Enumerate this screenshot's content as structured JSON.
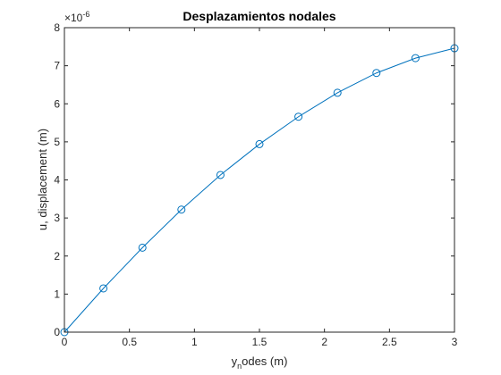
{
  "chart_data": {
    "type": "line",
    "title": "Desplazamientos nodales",
    "xlabel": {
      "main": "y",
      "subscript": "n",
      "rest": "odes (m)"
    },
    "ylabel": "u, displacement (m)",
    "exponent": {
      "base": "×10",
      "power": "-6"
    },
    "xlim": [
      0,
      3
    ],
    "ylim": [
      0,
      8
    ],
    "xticks": [
      0,
      0.5,
      1,
      1.5,
      2,
      2.5,
      3
    ],
    "xtick_labels": [
      "0",
      "0.5",
      "1",
      "1.5",
      "2",
      "2.5",
      "3"
    ],
    "yticks": [
      0,
      1,
      2,
      3,
      4,
      5,
      6,
      7,
      8
    ],
    "ytick_labels": [
      "0",
      "1",
      "2",
      "3",
      "4",
      "5",
      "6",
      "7",
      "8"
    ],
    "grid": false,
    "series": [
      {
        "marker": "circle",
        "color": "#0072BD",
        "x": [
          0,
          0.3,
          0.6,
          0.9,
          1.2,
          1.5,
          1.8,
          2.1,
          2.4,
          2.7,
          3.0
        ],
        "y": [
          0,
          1.15,
          2.22,
          3.22,
          4.13,
          4.94,
          5.66,
          6.29,
          6.81,
          7.2,
          7.46
        ]
      }
    ]
  }
}
